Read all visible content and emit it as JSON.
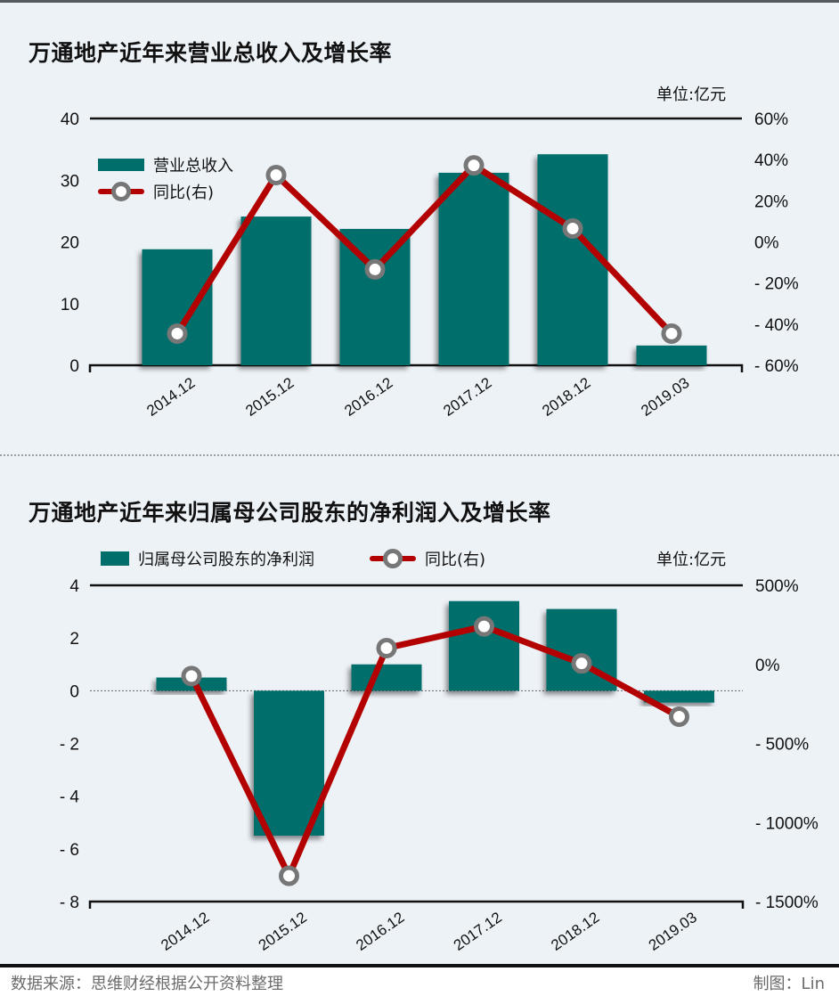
{
  "chart1": {
    "title": "万通地产近年来营业总收入及增长率",
    "unit": "单位:亿元",
    "legend": {
      "bar": "营业总收入",
      "line": "同比(右)"
    }
  },
  "chart2": {
    "title": "万通地产近年来归属母公司股东的净利润入及增长率",
    "unit": "单位:亿元",
    "legend": {
      "bar": "归属母公司股东的净利润",
      "line": "同比(右)"
    }
  },
  "footer": {
    "source": "数据来源：思维财经根据公开资料整理",
    "credit": "制图：Lin"
  },
  "colors": {
    "bar": "#006e6b",
    "line": "#b30000",
    "marker_ring": "#777777",
    "background": "#edf2f7"
  },
  "chart_data": [
    {
      "type": "bar+line",
      "title": "万通地产近年来营业总收入及增长率",
      "categories": [
        "2014.12",
        "2015.12",
        "2016.12",
        "2017.12",
        "2018.12",
        "2019.03"
      ],
      "series": [
        {
          "name": "营业总收入",
          "axis": "left",
          "type": "bar",
          "values": [
            18.8,
            24.1,
            22.1,
            31.2,
            34.2,
            3.2
          ]
        },
        {
          "name": "同比(右)",
          "axis": "right",
          "type": "line",
          "values": [
            -44.6,
            32.5,
            -13.4,
            37.2,
            6.5,
            -44.6
          ]
        }
      ],
      "ylabel_left": "亿元",
      "ylim_left": [
        0,
        40
      ],
      "yticks_left": [
        "0",
        "10",
        "20",
        "30",
        "40"
      ],
      "ylim_right": [
        -60,
        60
      ],
      "yticks_right": [
        "60%",
        "40%",
        "20%",
        "0%",
        "- 20%",
        "- 40%",
        "- 60%"
      ],
      "legend_position": "top-left",
      "grid": false
    },
    {
      "type": "bar+line",
      "title": "万通地产近年来归属母公司股东的净利润入及增长率",
      "categories": [
        "2014.12",
        "2015.12",
        "2016.12",
        "2017.12",
        "2018.12",
        "2019.03"
      ],
      "series": [
        {
          "name": "归属母公司股东的净利润",
          "axis": "left",
          "type": "bar",
          "values": [
            0.5,
            -5.5,
            1.0,
            3.4,
            3.1,
            -0.45
          ]
        },
        {
          "name": "同比(右)",
          "axis": "right",
          "type": "line",
          "values": [
            -74,
            -1337,
            103,
            240,
            6,
            -331
          ]
        }
      ],
      "ylabel_left": "亿元",
      "ylim_left": [
        -8,
        4
      ],
      "yticks_left": [
        "4",
        "2",
        "0",
        "- 2",
        "- 4",
        "- 6",
        "- 8"
      ],
      "ylim_right": [
        -1500,
        500
      ],
      "yticks_right": [
        "500%",
        "0%",
        "- 500%",
        "- 1000%",
        "- 1500%"
      ],
      "legend_position": "top",
      "grid": false
    }
  ]
}
